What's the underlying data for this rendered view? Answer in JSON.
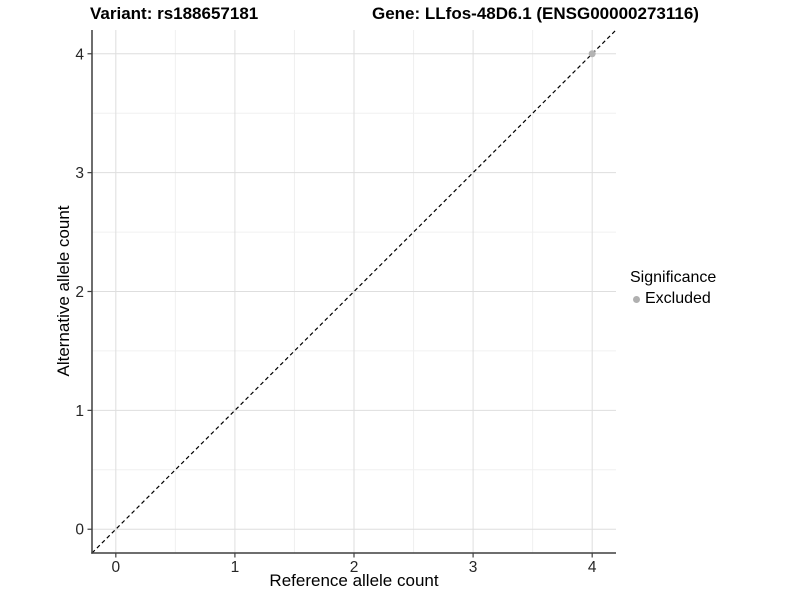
{
  "figure": {
    "background": "#ffffff"
  },
  "chart_data": {
    "type": "scatter",
    "title_left": "Variant: rs188657181",
    "title_right": "Gene: LLfos-48D6.1 (ENSG00000273116)",
    "xlabel": "Reference allele count",
    "ylabel": "Alternative allele count",
    "xlim": [
      -0.2,
      4.2
    ],
    "ylim": [
      -0.2,
      4.2
    ],
    "x_ticks": [
      0,
      1,
      2,
      3,
      4
    ],
    "y_ticks": [
      0,
      1,
      2,
      3,
      4
    ],
    "x_minor_ticks": [
      0.5,
      1.5,
      2.5,
      3.5
    ],
    "y_minor_ticks": [
      0.5,
      1.5,
      2.5,
      3.5
    ],
    "grid": true,
    "reference_line": {
      "slope": 1,
      "intercept": 0,
      "style": "dashed",
      "color": "#000000"
    },
    "series": [
      {
        "name": "Excluded",
        "color": "#b3b3b3",
        "points": [
          {
            "x": 4,
            "y": 4
          }
        ]
      }
    ],
    "legend": {
      "position": "right",
      "title": "Significance",
      "items": [
        {
          "label": "Excluded",
          "color": "#b0b0b0"
        }
      ]
    }
  },
  "colors": {
    "grid_major": "#dedede",
    "grid_minor": "#f0f0f0",
    "axis_line": "#3f3f3f",
    "tick_text": "#262626"
  }
}
